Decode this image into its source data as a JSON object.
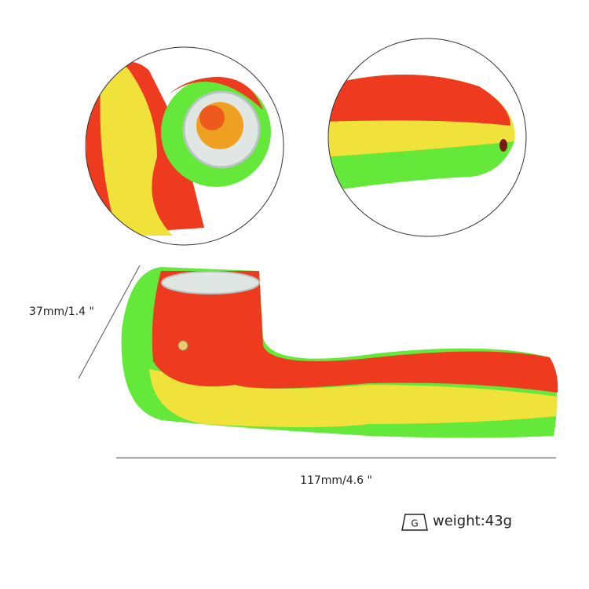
{
  "dimensions": {
    "height": "37mm/1.4 \"",
    "length": "117mm/4.6 \""
  },
  "weight": {
    "icon": "G",
    "label": "weight:43g"
  }
}
